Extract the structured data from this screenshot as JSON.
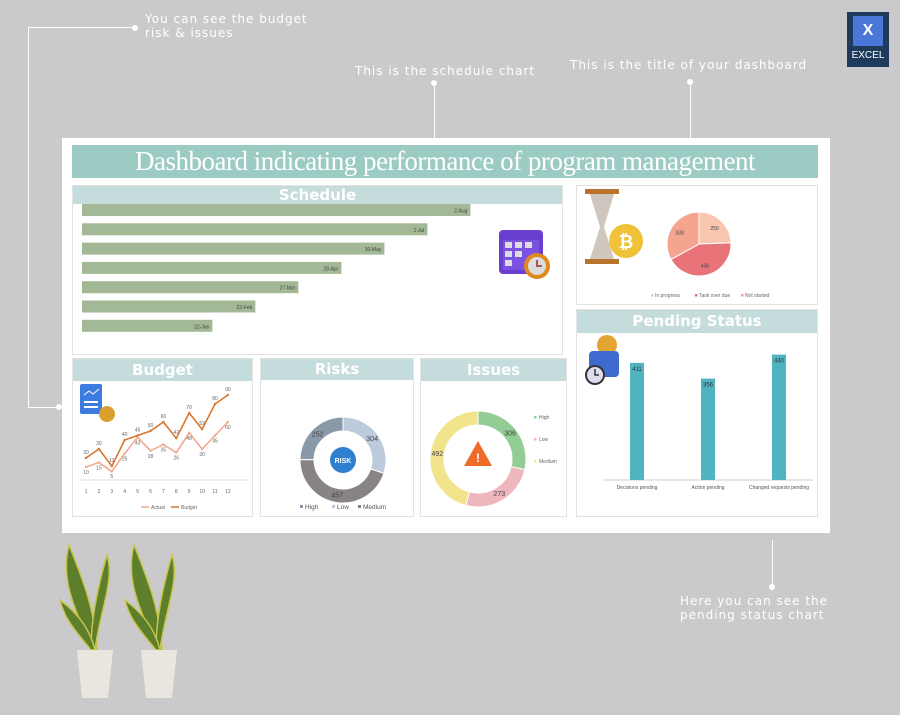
{
  "annotations": {
    "budget_note": "You can see the budget risk & issues",
    "schedule_note": "This is the schedule chart",
    "title_note": "This is the title of your dashboard",
    "pending_note": "Here you can see the pending status chart"
  },
  "logo": {
    "letter": "X",
    "label": "EXCEL"
  },
  "dashboard": {
    "title": "Dashboard indicating performance of program management"
  },
  "colors": {
    "header": "#c5dcdc",
    "title_bar": "#9ccbc3",
    "schedule_bar": "#a3b995",
    "pending_bar": "#4fb3c0",
    "budget_line": "#d9762f",
    "actual_line": "#f2a98f"
  },
  "chart_data": [
    {
      "id": "schedule",
      "type": "bar",
      "orientation": "horizontal",
      "title": "Schedule",
      "categories": [
        "2-Aug",
        "1-Jul",
        "30-May",
        "28-Apr",
        "27-Mar",
        "23-Feb",
        "22-Jan"
      ],
      "values": [
        "2-Aug",
        "1-Jul",
        "30-May",
        "28-Apr",
        "27-Mar",
        "23-Feb",
        "22-Jan"
      ],
      "data_labels": [
        "2-Aug",
        "1-Jul",
        "30-May",
        "28-Apr",
        "27-Mar",
        "23-Feb",
        "22-Jan"
      ]
    },
    {
      "id": "status_pie",
      "type": "pie",
      "legend": [
        "In progress",
        "Task over due",
        "Not started"
      ],
      "values": [
        250,
        436,
        338
      ],
      "colors": [
        "#f9c6b0",
        "#e8747a",
        "#f4a58f"
      ],
      "legend_position": "bottom"
    },
    {
      "id": "budget",
      "type": "line",
      "title": "Budget",
      "x": [
        1,
        2,
        3,
        4,
        5,
        6,
        7,
        8,
        9,
        10,
        11,
        12
      ],
      "series": [
        {
          "name": "Actual",
          "values": [
            10,
            15,
            5,
            25,
            43,
            28,
            35,
            26,
            48,
            30,
            45,
            60
          ]
        },
        {
          "name": "Budget",
          "values": [
            20,
            30,
            11,
            40,
            45,
            50,
            60,
            42,
            70,
            52,
            80,
            90
          ]
        }
      ],
      "legend_position": "bottom"
    },
    {
      "id": "risks",
      "type": "pie",
      "variant": "donut",
      "title": "Risks",
      "legend": [
        "High",
        "Low",
        "Medium"
      ],
      "values": [
        252,
        304,
        457
      ],
      "colors": [
        "#8a99a8",
        "#bccbdc",
        "#878387"
      ],
      "legend_position": "bottom"
    },
    {
      "id": "issues",
      "type": "pie",
      "variant": "donut",
      "title": "Issues",
      "legend": [
        "High",
        "Low",
        "Medium"
      ],
      "values": [
        306,
        273,
        492
      ],
      "colors": [
        "#93cc94",
        "#efb7bd",
        "#f2e48c"
      ],
      "legend_position": "right"
    },
    {
      "id": "pending",
      "type": "bar",
      "title": "Pending Status",
      "categories": [
        "Decisions pending",
        "Action pending",
        "Changed requests pending"
      ],
      "values": [
        411,
        356,
        440
      ]
    }
  ]
}
